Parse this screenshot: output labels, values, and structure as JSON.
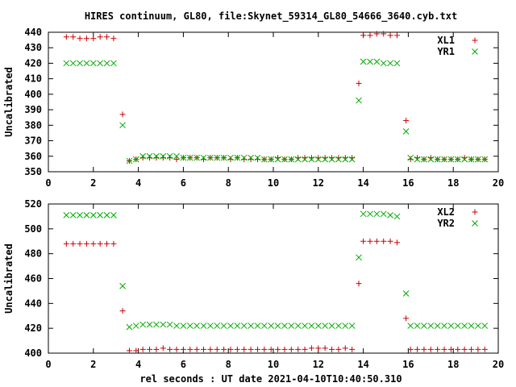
{
  "title": "HIRES continuum, GL80, file:Skynet_59314_GL80_54666_3640.cyb.txt",
  "xlabel": "rel seconds : UT date 2021-04-10T10:40:50.310",
  "colors": {
    "series_a": "#cc0000",
    "series_b": "#00aa00",
    "axis": "#000000"
  },
  "chart_data": [
    {
      "type": "scatter",
      "ylabel": "Uncalibrated",
      "xlim": [
        0,
        20
      ],
      "ylim": [
        350,
        440
      ],
      "xticks": [
        0,
        2,
        4,
        6,
        8,
        10,
        12,
        14,
        16,
        18,
        20
      ],
      "yticks": [
        350,
        360,
        370,
        380,
        390,
        400,
        410,
        420,
        430,
        440
      ],
      "legend_position": "top-right",
      "series": [
        {
          "name": "XL1",
          "marker": "plus",
          "x": [
            0.8,
            1.1,
            1.4,
            1.7,
            2.0,
            2.3,
            2.6,
            2.9,
            3.3,
            3.6,
            3.9,
            4.2,
            4.5,
            4.8,
            5.1,
            5.4,
            5.7,
            6.0,
            6.3,
            6.6,
            6.9,
            7.2,
            7.5,
            7.8,
            8.1,
            8.4,
            8.7,
            9.0,
            9.3,
            9.6,
            9.9,
            10.2,
            10.5,
            10.8,
            11.1,
            11.4,
            11.7,
            12.0,
            12.3,
            12.6,
            12.9,
            13.2,
            13.5,
            13.8,
            14.0,
            14.3,
            14.6,
            14.9,
            15.2,
            15.5,
            15.9,
            16.1,
            16.4,
            16.7,
            17.0,
            17.3,
            17.6,
            17.9,
            18.2,
            18.5,
            18.8,
            19.1,
            19.4
          ],
          "y": [
            437,
            437,
            436,
            436,
            436,
            437,
            437,
            436,
            387,
            357,
            358,
            359,
            359,
            359,
            359,
            359,
            358,
            359,
            359,
            359,
            358,
            359,
            359,
            359,
            358,
            359,
            358,
            358,
            358,
            358,
            358,
            359,
            358,
            358,
            359,
            359,
            359,
            359,
            359,
            359,
            359,
            359,
            359,
            407,
            438,
            438,
            439,
            439,
            438,
            438,
            383,
            358,
            359,
            358,
            359,
            358,
            358,
            358,
            358,
            359,
            358,
            358,
            358
          ]
        },
        {
          "name": "YR1",
          "marker": "cross",
          "x": [
            0.8,
            1.1,
            1.4,
            1.7,
            2.0,
            2.3,
            2.6,
            2.9,
            3.3,
            3.6,
            3.9,
            4.2,
            4.5,
            4.8,
            5.1,
            5.4,
            5.7,
            6.0,
            6.3,
            6.6,
            6.9,
            7.2,
            7.5,
            7.8,
            8.1,
            8.4,
            8.7,
            9.0,
            9.3,
            9.6,
            9.9,
            10.2,
            10.5,
            10.8,
            11.1,
            11.4,
            11.7,
            12.0,
            12.3,
            12.6,
            12.9,
            13.2,
            13.5,
            13.8,
            14.0,
            14.3,
            14.6,
            14.9,
            15.2,
            15.5,
            15.9,
            16.1,
            16.4,
            16.7,
            17.0,
            17.3,
            17.6,
            17.9,
            18.2,
            18.5,
            18.8,
            19.1,
            19.4
          ],
          "y": [
            420,
            420,
            420,
            420,
            420,
            420,
            420,
            420,
            380,
            357,
            358,
            360,
            360,
            360,
            360,
            360,
            360,
            359,
            359,
            359,
            359,
            359,
            359,
            359,
            359,
            359,
            359,
            359,
            359,
            358,
            358,
            358,
            358,
            358,
            358,
            358,
            358,
            358,
            358,
            358,
            358,
            358,
            358,
            396,
            421,
            421,
            421,
            420,
            420,
            420,
            376,
            359,
            358,
            358,
            358,
            358,
            358,
            358,
            358,
            358,
            358,
            358,
            358
          ]
        }
      ]
    },
    {
      "type": "scatter",
      "ylabel": "Uncalibrated",
      "xlim": [
        0,
        20
      ],
      "ylim": [
        400,
        520
      ],
      "xticks": [
        0,
        2,
        4,
        6,
        8,
        10,
        12,
        14,
        16,
        18,
        20
      ],
      "yticks": [
        400,
        420,
        440,
        460,
        480,
        500,
        520
      ],
      "legend_position": "top-right",
      "series": [
        {
          "name": "XL2",
          "marker": "plus",
          "x": [
            0.8,
            1.1,
            1.4,
            1.7,
            2.0,
            2.3,
            2.6,
            2.9,
            3.3,
            3.6,
            3.9,
            4.2,
            4.5,
            4.8,
            5.1,
            5.4,
            5.7,
            6.0,
            6.3,
            6.6,
            6.9,
            7.2,
            7.5,
            7.8,
            8.1,
            8.4,
            8.7,
            9.0,
            9.3,
            9.6,
            9.9,
            10.2,
            10.5,
            10.8,
            11.1,
            11.4,
            11.7,
            12.0,
            12.3,
            12.6,
            12.9,
            13.2,
            13.5,
            13.8,
            14.0,
            14.3,
            14.6,
            14.9,
            15.2,
            15.5,
            15.9,
            16.1,
            16.4,
            16.7,
            17.0,
            17.3,
            17.6,
            17.9,
            18.2,
            18.5,
            18.8,
            19.1,
            19.4
          ],
          "y": [
            488,
            488,
            488,
            488,
            488,
            488,
            488,
            488,
            434,
            402,
            402,
            403,
            403,
            403,
            404,
            403,
            403,
            403,
            403,
            403,
            403,
            403,
            403,
            403,
            403,
            403,
            403,
            403,
            403,
            403,
            403,
            403,
            403,
            403,
            403,
            403,
            404,
            404,
            404,
            403,
            403,
            404,
            403,
            456,
            490,
            490,
            490,
            490,
            490,
            489,
            428,
            403,
            403,
            403,
            403,
            403,
            403,
            403,
            403,
            403,
            403,
            403,
            403
          ]
        },
        {
          "name": "YR2",
          "marker": "cross",
          "x": [
            0.8,
            1.1,
            1.4,
            1.7,
            2.0,
            2.3,
            2.6,
            2.9,
            3.3,
            3.6,
            3.9,
            4.2,
            4.5,
            4.8,
            5.1,
            5.4,
            5.7,
            6.0,
            6.3,
            6.6,
            6.9,
            7.2,
            7.5,
            7.8,
            8.1,
            8.4,
            8.7,
            9.0,
            9.3,
            9.6,
            9.9,
            10.2,
            10.5,
            10.8,
            11.1,
            11.4,
            11.7,
            12.0,
            12.3,
            12.6,
            12.9,
            13.2,
            13.5,
            13.8,
            14.0,
            14.3,
            14.6,
            14.9,
            15.2,
            15.5,
            15.9,
            16.1,
            16.4,
            16.7,
            17.0,
            17.3,
            17.6,
            17.9,
            18.2,
            18.5,
            18.8,
            19.1,
            19.4
          ],
          "y": [
            511,
            511,
            511,
            511,
            511,
            511,
            511,
            511,
            454,
            421,
            422,
            423,
            423,
            423,
            423,
            423,
            422,
            422,
            422,
            422,
            422,
            422,
            422,
            422,
            422,
            422,
            422,
            422,
            422,
            422,
            422,
            422,
            422,
            422,
            422,
            422,
            422,
            422,
            422,
            422,
            422,
            422,
            422,
            477,
            512,
            512,
            512,
            512,
            511,
            510,
            448,
            422,
            422,
            422,
            422,
            422,
            422,
            422,
            422,
            422,
            422,
            422,
            422
          ]
        }
      ]
    }
  ]
}
